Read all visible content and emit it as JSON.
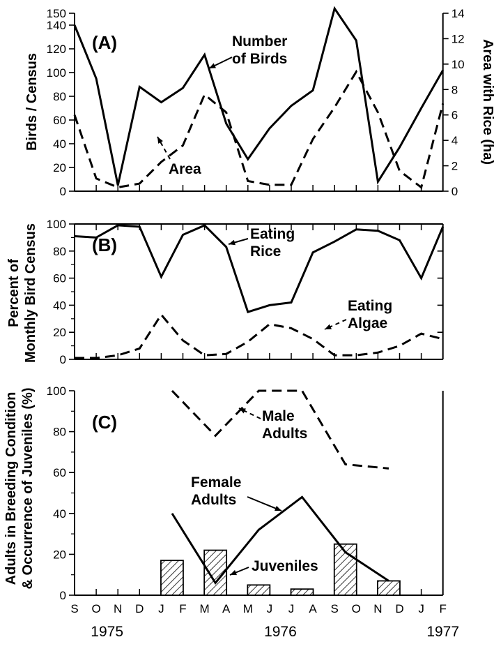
{
  "months": [
    "S",
    "O",
    "N",
    "D",
    "J",
    "F",
    "M",
    "A",
    "M",
    "J",
    "J",
    "A",
    "S",
    "O",
    "N",
    "D",
    "J",
    "F"
  ],
  "years": [
    "1975",
    "1976",
    "1977"
  ],
  "colors": {
    "ink": "#000000",
    "paper": "#ffffff"
  },
  "chart_data": [
    {
      "type": "line",
      "panel_label": "(A)",
      "ylabel": "Birds / Census",
      "ylabel_right": "Area with Rice (ha)",
      "ylim": [
        0,
        150
      ],
      "yticks": [
        "0",
        "20",
        "40",
        "60",
        "80",
        "100",
        "120",
        "140",
        "150"
      ],
      "ylim_right": [
        0,
        14
      ],
      "yticks_right": [
        "0",
        "2",
        "4",
        "6",
        "8",
        "10",
        "12",
        "14"
      ],
      "x": [
        0,
        1,
        2,
        3,
        4,
        5,
        6,
        7,
        8,
        9,
        10,
        11,
        12,
        13,
        14,
        15,
        16,
        17
      ],
      "series": [
        {
          "name": "Number of Birds",
          "style": "solid",
          "axis": "left",
          "values": [
            140,
            95,
            5,
            88,
            75,
            87,
            115,
            57,
            27,
            53,
            72,
            85,
            154,
            127,
            8,
            37,
            70,
            102
          ]
        },
        {
          "name": "Area",
          "style": "dashed",
          "axis": "right",
          "values": [
            6.0,
            1.0,
            0.3,
            0.6,
            2.3,
            3.6,
            7.6,
            6.2,
            0.8,
            0.5,
            0.5,
            4.1,
            6.6,
            9.4,
            6.2,
            1.6,
            0.3,
            6.9
          ]
        }
      ],
      "annotations": [
        "Number",
        "of Birds",
        "Area"
      ]
    },
    {
      "type": "line",
      "panel_label": "(B)",
      "ylabel": "Percent of Monthly Bird Census",
      "ylim": [
        0,
        100
      ],
      "yticks": [
        "0",
        "20",
        "40",
        "60",
        "80",
        "100"
      ],
      "series": [
        {
          "name": "Eating Rice",
          "style": "solid",
          "x": [
            0,
            1,
            2,
            3,
            4,
            5,
            6,
            7,
            8,
            9,
            10,
            11,
            12,
            13,
            14,
            15,
            16,
            17
          ],
          "values": [
            91,
            90,
            99,
            98,
            61,
            92,
            99,
            83,
            35,
            40,
            42,
            79,
            87,
            96,
            95,
            88,
            60,
            98
          ]
        },
        {
          "name": "Eating Algae",
          "style": "dashed",
          "x": [
            0,
            1,
            2,
            3,
            4,
            5,
            6,
            7,
            8,
            9,
            10,
            11,
            12,
            13,
            14,
            15,
            16,
            17
          ],
          "values": [
            1,
            1,
            3,
            8,
            33,
            14,
            3,
            4,
            13,
            26,
            23,
            15,
            3,
            3,
            5,
            10,
            19,
            15
          ]
        }
      ],
      "annotations": [
        "Eating",
        "Rice",
        "Eating",
        "Algae"
      ]
    },
    {
      "type": "bar",
      "panel_label": "(C)",
      "ylabel": "Adults in Breeding Condition & Occurrence of Juveniles (%)",
      "ylim": [
        0,
        100
      ],
      "yticks": [
        "0",
        "20",
        "40",
        "60",
        "80",
        "100"
      ],
      "series": [
        {
          "name": "Male Adults",
          "style": "dashed",
          "x": [
            4.5,
            6.5,
            8.5,
            10.5,
            12.5,
            14.5
          ],
          "values": [
            100,
            78,
            100,
            100,
            64,
            62
          ]
        },
        {
          "name": "Female Adults",
          "style": "solid",
          "x": [
            4.5,
            6.5,
            8.5,
            10.5,
            12.5,
            14.5
          ],
          "values": [
            40,
            6,
            32,
            48,
            21,
            7
          ]
        },
        {
          "name": "Juveniles",
          "style": "hatched-bar",
          "x": [
            4.5,
            6.5,
            8.5,
            10.5,
            12.5,
            14.5
          ],
          "values": [
            17,
            22,
            5,
            3,
            25,
            7
          ]
        }
      ],
      "annotations": [
        "Male",
        "Adults",
        "Female",
        "Adults",
        "Juveniles"
      ]
    }
  ]
}
